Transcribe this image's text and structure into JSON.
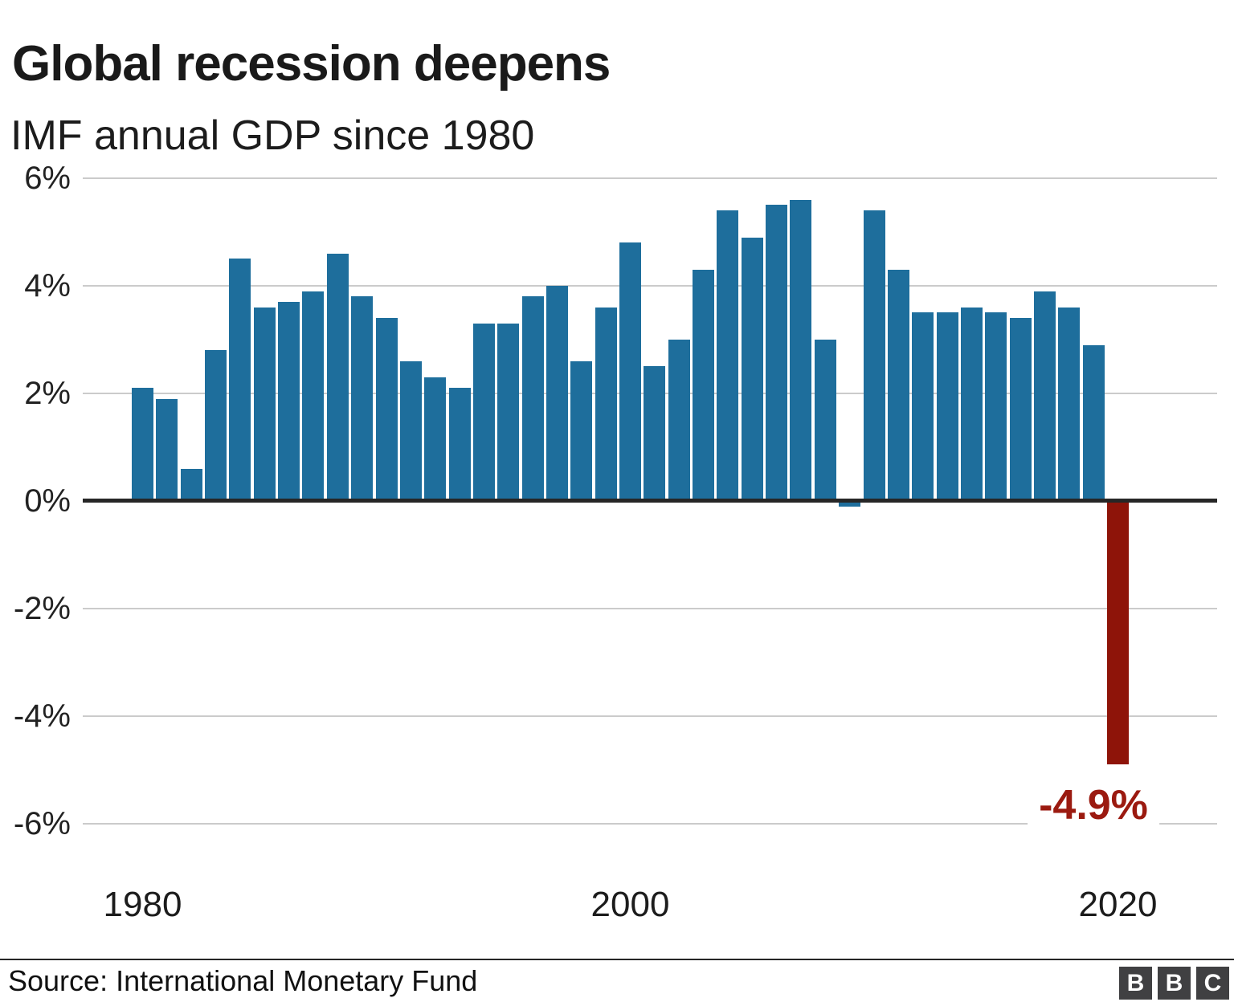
{
  "header": {
    "title": "Global recession deepens",
    "subtitle": "IMF annual GDP since 1980"
  },
  "chart_data": {
    "type": "bar",
    "x": [
      1980,
      1981,
      1982,
      1983,
      1984,
      1985,
      1986,
      1987,
      1988,
      1989,
      1990,
      1991,
      1992,
      1993,
      1994,
      1995,
      1996,
      1997,
      1998,
      1999,
      2000,
      2001,
      2002,
      2003,
      2004,
      2005,
      2006,
      2007,
      2008,
      2009,
      2010,
      2011,
      2012,
      2013,
      2014,
      2015,
      2016,
      2017,
      2018,
      2019,
      2020
    ],
    "values": [
      2.1,
      1.9,
      0.6,
      2.8,
      4.5,
      3.6,
      3.7,
      3.9,
      4.6,
      3.8,
      3.4,
      2.6,
      2.3,
      2.1,
      3.3,
      3.3,
      3.8,
      4.0,
      2.6,
      3.6,
      4.8,
      2.5,
      3.0,
      4.3,
      5.4,
      4.9,
      5.5,
      5.6,
      3.0,
      -0.1,
      5.4,
      4.3,
      3.5,
      3.5,
      3.6,
      3.5,
      3.4,
      3.9,
      3.6,
      2.9,
      -4.9
    ],
    "title": "Global recession deepens",
    "subtitle": "IMF annual GDP since 1980",
    "ylim": [
      -6,
      6
    ],
    "grid": "horizontal",
    "yticks": [
      {
        "label": "6%",
        "value": 6
      },
      {
        "label": "4%",
        "value": 4
      },
      {
        "label": "2%",
        "value": 2
      },
      {
        "label": "0%",
        "value": 0
      },
      {
        "label": "-2%",
        "value": -2
      },
      {
        "label": "-4%",
        "value": -4
      },
      {
        "label": "-6%",
        "value": -6
      }
    ],
    "xticks": [
      {
        "label": "1980",
        "year": 1980
      },
      {
        "label": "2000",
        "year": 2000
      },
      {
        "label": "2020",
        "year": 2020
      }
    ],
    "highlight_year": 2020,
    "annotation": {
      "text": "-4.9%",
      "year": 2020
    },
    "colors": {
      "bar": "#1e6e9c",
      "highlight_bar": "#8e1409",
      "annotation_text": "#9b1a10",
      "gridline": "#cbcbcb",
      "axis": "#262626"
    }
  },
  "footer": {
    "source": "Source: International Monetary Fund",
    "logo_letters": [
      "B",
      "B",
      "C"
    ]
  }
}
